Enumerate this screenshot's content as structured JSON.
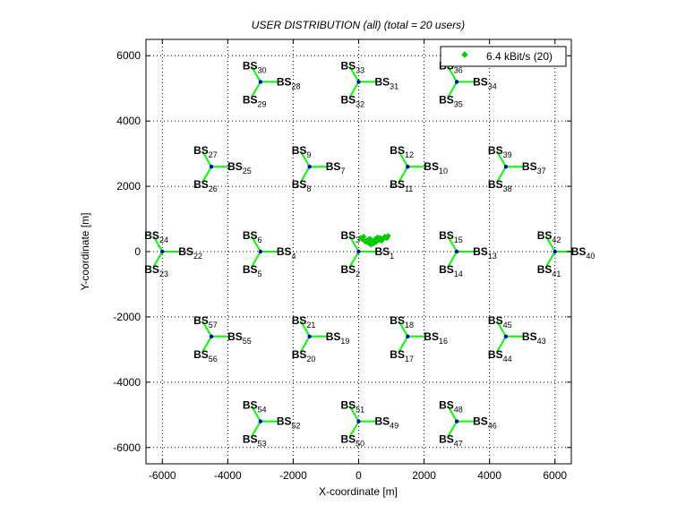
{
  "chart_data": {
    "type": "scatter",
    "title": "USER DISTRIBUTION (all) (total = 20 users)",
    "xlabel": "X-coordinate [m]",
    "ylabel": "Y-coordinate [m]",
    "xlim": [
      -6500,
      6500
    ],
    "ylim": [
      -6500,
      6500
    ],
    "xticks": [
      -6000,
      -4000,
      -2000,
      0,
      2000,
      4000,
      6000
    ],
    "yticks": [
      -6000,
      -4000,
      -2000,
      0,
      2000,
      4000,
      6000
    ],
    "grid": true,
    "legend_position": "top-right",
    "colors": {
      "users": "#00cc00",
      "antenna": "#00ff00",
      "site": "#0000cc",
      "axes": "#000000"
    },
    "series": [
      {
        "name": "6.4 kBit/s (20)",
        "marker": "diamond",
        "points": [
          [
            60,
            420
          ],
          [
            120,
            380
          ],
          [
            150,
            460
          ],
          [
            210,
            300
          ],
          [
            250,
            350
          ],
          [
            300,
            260
          ],
          [
            340,
            400
          ],
          [
            380,
            210
          ],
          [
            420,
            320
          ],
          [
            460,
            250
          ],
          [
            500,
            380
          ],
          [
            540,
            300
          ],
          [
            580,
            440
          ],
          [
            620,
            360
          ],
          [
            660,
            420
          ],
          [
            700,
            330
          ],
          [
            760,
            390
          ],
          [
            800,
            460
          ],
          [
            860,
            410
          ],
          [
            900,
            480
          ]
        ]
      }
    ],
    "sites": [
      {
        "x": 0,
        "y": 0,
        "labels": [
          "1",
          "2",
          "3"
        ]
      },
      {
        "x": -3000,
        "y": 0,
        "labels": [
          "4",
          "5",
          "6"
        ]
      },
      {
        "x": -1500,
        "y": 2600,
        "labels": [
          "7",
          "8",
          "9"
        ]
      },
      {
        "x": 1500,
        "y": 2600,
        "labels": [
          "10",
          "11",
          "12"
        ]
      },
      {
        "x": 3000,
        "y": 0,
        "labels": [
          "13",
          "14",
          "15"
        ]
      },
      {
        "x": 1500,
        "y": -2600,
        "labels": [
          "16",
          "17",
          "18"
        ]
      },
      {
        "x": -1500,
        "y": -2600,
        "labels": [
          "19",
          "20",
          "21"
        ]
      },
      {
        "x": -6000,
        "y": 0,
        "labels": [
          "22",
          "23",
          "24"
        ]
      },
      {
        "x": -4500,
        "y": 2600,
        "labels": [
          "25",
          "26",
          "27"
        ]
      },
      {
        "x": -3000,
        "y": 5200,
        "labels": [
          "28",
          "29",
          "30"
        ]
      },
      {
        "x": 0,
        "y": 5200,
        "labels": [
          "31",
          "32",
          "33"
        ]
      },
      {
        "x": 3000,
        "y": 5200,
        "labels": [
          "34",
          "35",
          "36"
        ]
      },
      {
        "x": 4500,
        "y": 2600,
        "labels": [
          "37",
          "38",
          "39"
        ]
      },
      {
        "x": 6000,
        "y": 0,
        "labels": [
          "40",
          "41",
          "42"
        ]
      },
      {
        "x": 4500,
        "y": -2600,
        "labels": [
          "43",
          "44",
          "45"
        ]
      },
      {
        "x": 3000,
        "y": -5200,
        "labels": [
          "46",
          "47",
          "48"
        ]
      },
      {
        "x": 0,
        "y": -5200,
        "labels": [
          "49",
          "50",
          "51"
        ]
      },
      {
        "x": -3000,
        "y": -5200,
        "labels": [
          "52",
          "53",
          "54"
        ]
      },
      {
        "x": -4500,
        "y": -2600,
        "labels": [
          "55",
          "56",
          "57"
        ]
      }
    ],
    "site_label_prefix": "BS"
  }
}
